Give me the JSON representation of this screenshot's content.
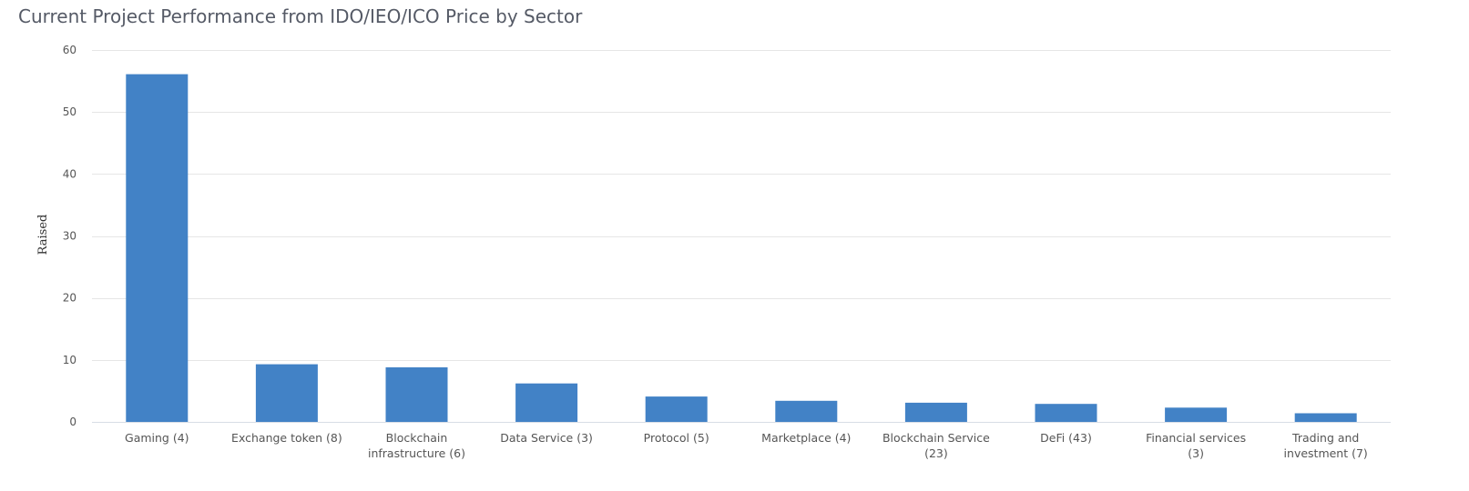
{
  "chart_data": {
    "type": "bar",
    "title": "Current Project Performance from IDO/IEO/ICO Price by Sector",
    "xlabel": "",
    "ylabel": "Raised",
    "ylim": [
      0,
      60
    ],
    "yticks": [
      0,
      10,
      20,
      30,
      40,
      50,
      60
    ],
    "grid": true,
    "legend": "none",
    "bar_color": "#4282c6",
    "categories": [
      "Gaming (4)",
      "Exchange token (8)",
      "Blockchain infrastructure (6)",
      "Data Service (3)",
      "Protocol (5)",
      "Marketplace (4)",
      "Blockchain Service (23)",
      "DeFi (43)",
      "Financial services (3)",
      "Trading and investment (7)"
    ],
    "category_label_lines": [
      [
        "Gaming (4)"
      ],
      [
        "Exchange token (8)"
      ],
      [
        "Blockchain",
        "infrastructure (6)"
      ],
      [
        "Data Service (3)"
      ],
      [
        "Protocol (5)"
      ],
      [
        "Marketplace (4)"
      ],
      [
        "Blockchain Service",
        "(23)"
      ],
      [
        "DeFi (43)"
      ],
      [
        "Financial services",
        "(3)"
      ],
      [
        "Trading and",
        "investment (7)"
      ]
    ],
    "values": [
      56.1,
      9.3,
      8.8,
      6.2,
      4.1,
      3.4,
      3.1,
      2.9,
      2.3,
      1.4
    ]
  }
}
